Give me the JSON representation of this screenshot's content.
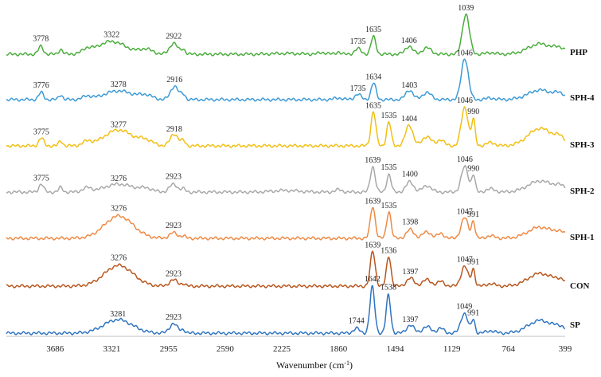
{
  "chart_data": {
    "type": "line",
    "title": "",
    "xlabel": "Wavenumber (cm⁻¹)",
    "xlabel_main": "Wavenumber",
    "xlabel_unit": "(cm",
    "xlabel_exp": "-1",
    "xlabel_close": ")",
    "xlim": [
      4000,
      399
    ],
    "x_reversed": true,
    "ylabel": "",
    "grid": false,
    "x_ticks": [
      3686,
      3321,
      2955,
      2590,
      2225,
      1860,
      1494,
      1129,
      764,
      399
    ],
    "series": [
      {
        "name": "PHP",
        "color": "#4aad3c",
        "peaks": [
          {
            "x": 3778,
            "label": "3778"
          },
          {
            "x": 3322,
            "label": "3322"
          },
          {
            "x": 2922,
            "label": "2922"
          },
          {
            "x": 1735,
            "label": "1735"
          },
          {
            "x": 1635,
            "label": "1635"
          },
          {
            "x": 1406,
            "label": "1406"
          },
          {
            "x": 1039,
            "label": "1039"
          }
        ]
      },
      {
        "name": "SPH-4",
        "color": "#3c9ad6",
        "peaks": [
          {
            "x": 3776,
            "label": "3776"
          },
          {
            "x": 3278,
            "label": "3278"
          },
          {
            "x": 2916,
            "label": "2916"
          },
          {
            "x": 1735,
            "label": "1735"
          },
          {
            "x": 1634,
            "label": "1634"
          },
          {
            "x": 1403,
            "label": "1403"
          },
          {
            "x": 1046,
            "label": "1046"
          }
        ]
      },
      {
        "name": "SPH-3",
        "color": "#f2bf12",
        "peaks": [
          {
            "x": 3775,
            "label": "3775"
          },
          {
            "x": 3277,
            "label": "3277"
          },
          {
            "x": 2918,
            "label": "2918"
          },
          {
            "x": 1635,
            "label": "1635"
          },
          {
            "x": 1535,
            "label": "1535"
          },
          {
            "x": 1404,
            "label": "1404"
          },
          {
            "x": 1046,
            "label": "1046"
          },
          {
            "x": 990,
            "label": "990"
          }
        ]
      },
      {
        "name": "SPH-2",
        "color": "#a8a8a8",
        "peaks": [
          {
            "x": 3775,
            "label": "3775"
          },
          {
            "x": 3276,
            "label": "3276"
          },
          {
            "x": 2923,
            "label": "2923"
          },
          {
            "x": 1639,
            "label": "1639"
          },
          {
            "x": 1535,
            "label": "1535"
          },
          {
            "x": 1400,
            "label": "1400"
          },
          {
            "x": 1046,
            "label": "1046"
          },
          {
            "x": 990,
            "label": "990"
          }
        ]
      },
      {
        "name": "SPH-1",
        "color": "#ee8a45",
        "peaks": [
          {
            "x": 3276,
            "label": "3276"
          },
          {
            "x": 2923,
            "label": "2923"
          },
          {
            "x": 1639,
            "label": "1639"
          },
          {
            "x": 1535,
            "label": "1535"
          },
          {
            "x": 1398,
            "label": "1398"
          },
          {
            "x": 1047,
            "label": "1047"
          },
          {
            "x": 991,
            "label": "991"
          }
        ]
      },
      {
        "name": "CON",
        "color": "#b8561e",
        "peaks": [
          {
            "x": 3276,
            "label": "3276"
          },
          {
            "x": 2923,
            "label": "2923"
          },
          {
            "x": 1639,
            "label": "1639"
          },
          {
            "x": 1536,
            "label": "1536"
          },
          {
            "x": 1397,
            "label": "1397"
          },
          {
            "x": 1047,
            "label": "1047"
          },
          {
            "x": 991,
            "label": "991"
          }
        ]
      },
      {
        "name": "SP",
        "color": "#2f74c0",
        "peaks": [
          {
            "x": 3281,
            "label": "3281"
          },
          {
            "x": 2923,
            "label": "2923"
          },
          {
            "x": 1744,
            "label": "1744"
          },
          {
            "x": 1642,
            "label": "1642"
          },
          {
            "x": 1538,
            "label": "1538"
          },
          {
            "x": 1397,
            "label": "1397"
          },
          {
            "x": 1049,
            "label": "1049"
          },
          {
            "x": 991,
            "label": "991"
          }
        ]
      }
    ]
  }
}
